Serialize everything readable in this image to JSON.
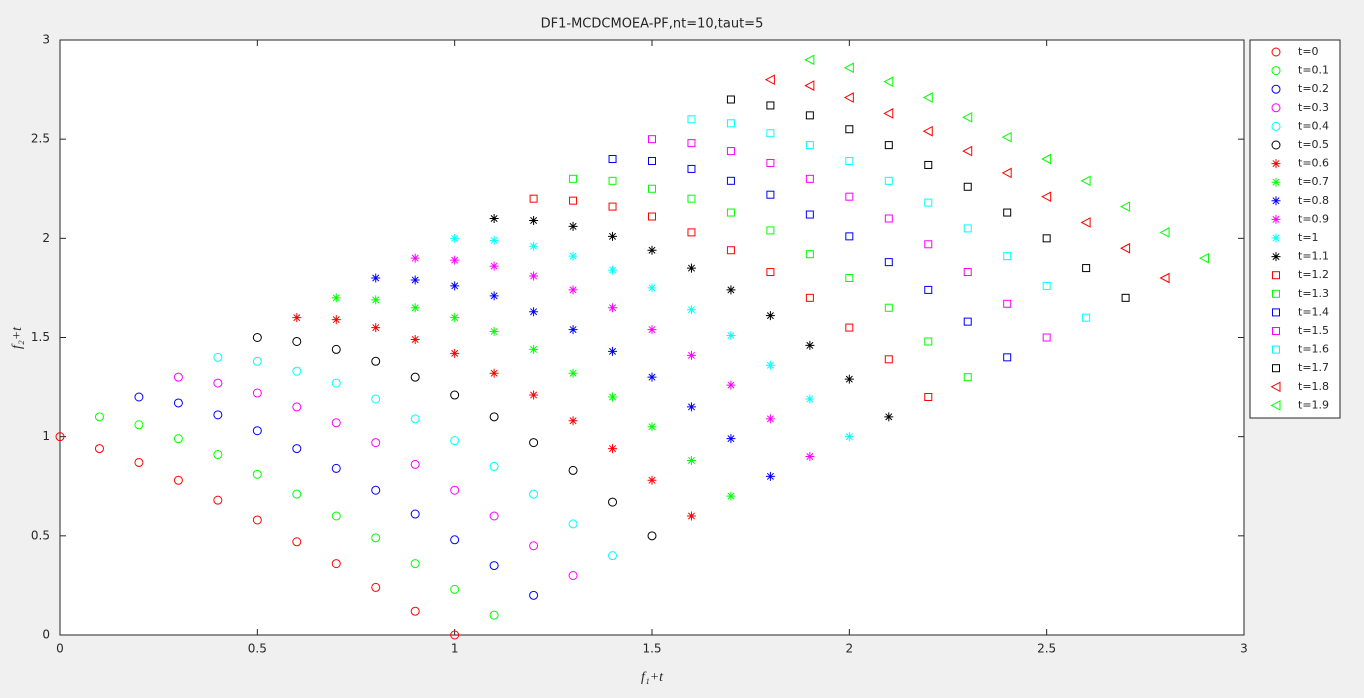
{
  "chart_data": {
    "type": "scatter",
    "title": "DF1-MCDCMOEA-PF,nt=10,taut=5",
    "xlabel": "f₁+t",
    "ylabel": "f₂+t",
    "xlim": [
      0,
      3
    ],
    "ylim": [
      0,
      3
    ],
    "xticks": [
      0,
      0.5,
      1,
      1.5,
      2,
      2.5,
      3
    ],
    "yticks": [
      0,
      0.5,
      1,
      1.5,
      2,
      2.5,
      3
    ],
    "series": [
      {
        "name": "t=0",
        "color": "#ff0000",
        "marker": "o",
        "x": [
          0,
          0.1,
          0.2,
          0.3,
          0.4,
          0.5,
          0.6,
          0.7,
          0.8,
          0.9,
          1
        ],
        "values": [
          1,
          0.94,
          0.87,
          0.78,
          0.68,
          0.58,
          0.47,
          0.36,
          0.24,
          0.12,
          0
        ]
      },
      {
        "name": "t=0.1",
        "color": "#00ff00",
        "marker": "o",
        "x": [
          0.1,
          0.2,
          0.3,
          0.4,
          0.5,
          0.6,
          0.7,
          0.8,
          0.9,
          1,
          1.1
        ],
        "values": [
          1.1,
          1.06,
          0.99,
          0.91,
          0.81,
          0.71,
          0.6,
          0.49,
          0.36,
          0.23,
          0.1
        ]
      },
      {
        "name": "t=0.2",
        "color": "#0000ff",
        "marker": "o",
        "x": [
          0.2,
          0.3,
          0.4,
          0.5,
          0.6,
          0.7,
          0.8,
          0.9,
          1,
          1.1,
          1.2
        ],
        "values": [
          1.2,
          1.17,
          1.11,
          1.03,
          0.94,
          0.84,
          0.73,
          0.61,
          0.48,
          0.35,
          0.2
        ]
      },
      {
        "name": "t=0.3",
        "color": "#ff00ff",
        "marker": "o",
        "x": [
          0.3,
          0.4,
          0.5,
          0.6,
          0.7,
          0.8,
          0.9,
          1,
          1.1,
          1.2,
          1.3
        ],
        "values": [
          1.3,
          1.27,
          1.22,
          1.15,
          1.07,
          0.97,
          0.86,
          0.73,
          0.6,
          0.45,
          0.3
        ]
      },
      {
        "name": "t=0.4",
        "color": "#00ffff",
        "marker": "o",
        "x": [
          0.4,
          0.5,
          0.6,
          0.7,
          0.8,
          0.9,
          1,
          1.1,
          1.2,
          1.3,
          1.4
        ],
        "values": [
          1.4,
          1.38,
          1.33,
          1.27,
          1.19,
          1.09,
          0.98,
          0.85,
          0.71,
          0.56,
          0.4
        ]
      },
      {
        "name": "t=0.5",
        "color": "#000000",
        "marker": "o",
        "x": [
          0.5,
          0.6,
          0.7,
          0.8,
          0.9,
          1,
          1.1,
          1.2,
          1.3,
          1.4,
          1.5
        ],
        "values": [
          1.5,
          1.48,
          1.44,
          1.38,
          1.3,
          1.21,
          1.1,
          0.97,
          0.83,
          0.67,
          0.5
        ]
      },
      {
        "name": "t=0.6",
        "color": "#ff0000",
        "marker": "*",
        "x": [
          0.6,
          0.7,
          0.8,
          0.9,
          1,
          1.1,
          1.2,
          1.3,
          1.4,
          1.5,
          1.6
        ],
        "values": [
          1.6,
          1.59,
          1.55,
          1.49,
          1.42,
          1.32,
          1.21,
          1.08,
          0.94,
          0.78,
          0.6
        ]
      },
      {
        "name": "t=0.7",
        "color": "#00ff00",
        "marker": "*",
        "x": [
          0.7,
          0.8,
          0.9,
          1,
          1.1,
          1.2,
          1.3,
          1.4,
          1.5,
          1.6,
          1.7
        ],
        "values": [
          1.7,
          1.69,
          1.65,
          1.6,
          1.53,
          1.44,
          1.32,
          1.2,
          1.05,
          0.88,
          0.7
        ]
      },
      {
        "name": "t=0.8",
        "color": "#0000ff",
        "marker": "*",
        "x": [
          0.8,
          0.9,
          1,
          1.1,
          1.2,
          1.3,
          1.4,
          1.5,
          1.6,
          1.7,
          1.8
        ],
        "values": [
          1.8,
          1.79,
          1.76,
          1.71,
          1.63,
          1.54,
          1.43,
          1.3,
          1.15,
          0.99,
          0.8
        ]
      },
      {
        "name": "t=0.9",
        "color": "#ff00ff",
        "marker": "*",
        "x": [
          0.9,
          1,
          1.1,
          1.2,
          1.3,
          1.4,
          1.5,
          1.6,
          1.7,
          1.8,
          1.9
        ],
        "values": [
          1.9,
          1.89,
          1.86,
          1.81,
          1.74,
          1.65,
          1.54,
          1.41,
          1.26,
          1.09,
          0.9
        ]
      },
      {
        "name": "t=1",
        "color": "#00ffff",
        "marker": "*",
        "x": [
          1,
          1.1,
          1.2,
          1.3,
          1.4,
          1.5,
          1.6,
          1.7,
          1.8,
          1.9,
          2
        ],
        "values": [
          2,
          1.99,
          1.96,
          1.91,
          1.84,
          1.75,
          1.64,
          1.51,
          1.36,
          1.19,
          1
        ]
      },
      {
        "name": "t=1.1",
        "color": "#000000",
        "marker": "*",
        "x": [
          1.1,
          1.2,
          1.3,
          1.4,
          1.5,
          1.6,
          1.7,
          1.8,
          1.9,
          2,
          2.1
        ],
        "values": [
          2.1,
          2.09,
          2.06,
          2.01,
          1.94,
          1.85,
          1.74,
          1.61,
          1.46,
          1.29,
          1.1
        ]
      },
      {
        "name": "t=1.2",
        "color": "#ff0000",
        "marker": "s",
        "x": [
          1.2,
          1.3,
          1.4,
          1.5,
          1.6,
          1.7,
          1.8,
          1.9,
          2,
          2.1,
          2.2
        ],
        "values": [
          2.2,
          2.19,
          2.16,
          2.11,
          2.03,
          1.94,
          1.83,
          1.7,
          1.55,
          1.39,
          1.2
        ]
      },
      {
        "name": "t=1.3",
        "color": "#00ff00",
        "marker": "s",
        "x": [
          1.3,
          1.4,
          1.5,
          1.6,
          1.7,
          1.8,
          1.9,
          2,
          2.1,
          2.2,
          2.3
        ],
        "values": [
          2.3,
          2.29,
          2.25,
          2.2,
          2.13,
          2.04,
          1.92,
          1.8,
          1.65,
          1.48,
          1.3
        ]
      },
      {
        "name": "t=1.4",
        "color": "#0000ff",
        "marker": "s",
        "x": [
          1.4,
          1.5,
          1.6,
          1.7,
          1.8,
          1.9,
          2,
          2.1,
          2.2,
          2.3,
          2.4
        ],
        "values": [
          2.4,
          2.39,
          2.35,
          2.29,
          2.22,
          2.12,
          2.01,
          1.88,
          1.74,
          1.58,
          1.4
        ]
      },
      {
        "name": "t=1.5",
        "color": "#ff00ff",
        "marker": "s",
        "x": [
          1.5,
          1.6,
          1.7,
          1.8,
          1.9,
          2,
          2.1,
          2.2,
          2.3,
          2.4,
          2.5
        ],
        "values": [
          2.5,
          2.48,
          2.44,
          2.38,
          2.3,
          2.21,
          2.1,
          1.97,
          1.83,
          1.67,
          1.5
        ]
      },
      {
        "name": "t=1.6",
        "color": "#00ffff",
        "marker": "s",
        "x": [
          1.6,
          1.7,
          1.8,
          1.9,
          2,
          2.1,
          2.2,
          2.3,
          2.4,
          2.5,
          2.6
        ],
        "values": [
          2.6,
          2.58,
          2.53,
          2.47,
          2.39,
          2.29,
          2.18,
          2.05,
          1.91,
          1.76,
          1.6
        ]
      },
      {
        "name": "t=1.7",
        "color": "#000000",
        "marker": "s",
        "x": [
          1.7,
          1.8,
          1.9,
          2,
          2.1,
          2.2,
          2.3,
          2.4,
          2.5,
          2.6,
          2.7
        ],
        "values": [
          2.7,
          2.67,
          2.62,
          2.55,
          2.47,
          2.37,
          2.26,
          2.13,
          2,
          1.85,
          1.7
        ]
      },
      {
        "name": "t=1.8",
        "color": "#ff0000",
        "marker": "<",
        "x": [
          1.8,
          1.9,
          2,
          2.1,
          2.2,
          2.3,
          2.4,
          2.5,
          2.6,
          2.7,
          2.8
        ],
        "values": [
          2.8,
          2.77,
          2.71,
          2.63,
          2.54,
          2.44,
          2.33,
          2.21,
          2.08,
          1.95,
          1.8
        ]
      },
      {
        "name": "t=1.9",
        "color": "#00ff00",
        "marker": "<",
        "x": [
          1.9,
          2,
          2.1,
          2.2,
          2.3,
          2.4,
          2.5,
          2.6,
          2.7,
          2.8,
          2.9
        ],
        "values": [
          2.9,
          2.86,
          2.79,
          2.71,
          2.61,
          2.51,
          2.4,
          2.29,
          2.16,
          2.03,
          1.9
        ]
      }
    ]
  }
}
